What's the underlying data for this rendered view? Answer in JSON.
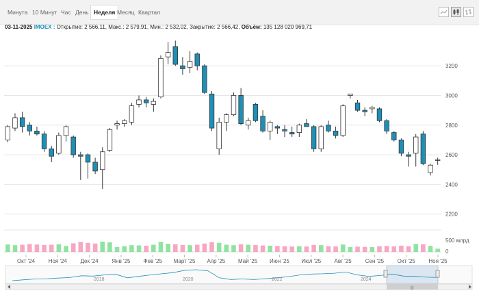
{
  "tabs": [
    {
      "label": "Минута",
      "active": false
    },
    {
      "label": "10 Минут",
      "active": false
    },
    {
      "label": "Час",
      "active": false
    },
    {
      "label": "День",
      "active": false
    },
    {
      "label": "Неделя",
      "active": true
    },
    {
      "label": "Месяц",
      "active": false
    },
    {
      "label": "Квартал",
      "active": false
    }
  ],
  "toolbar": {
    "icons": [
      "line-chart-icon",
      "candlestick-chart-icon",
      "ohlc-bar-chart-icon"
    ]
  },
  "info": {
    "date": "03-11-2025",
    "ticker": "IMOEX :",
    "ohlc_text": "Открытие: 2 566,11, Макс.: 2 579,91, Мин.: 2 532,02, Закрытие: 2 566,42,",
    "volume_label": "Объём:",
    "volume_value": "135 128 020 969,71"
  },
  "colors": {
    "up": "#ffffff",
    "down": "#1e8fb6",
    "up_volume": "#8fe3a1",
    "down_volume": "#f7a7c1",
    "navigator": "#1e8fb6"
  },
  "chart_data": {
    "type": "candlestick",
    "price_axis": {
      "ticks": [
        2200,
        2400,
        2600,
        2800,
        3000,
        3200
      ],
      "ylim": [
        2120,
        3390
      ],
      "side": "right"
    },
    "volume_axis": {
      "tick_labels": [
        "0",
        "500 млрд"
      ],
      "max": 1000
    },
    "x_labels": [
      "Окт '24",
      "Ноя '24",
      "Дек '24",
      "Янв '25",
      "Фев '25",
      "Март '25",
      "Апр '25",
      "Май '25",
      "Июн '25",
      "Июл '25",
      "Авг '25",
      "Сен '25",
      "Окт '25",
      "Ноя '25"
    ],
    "candles": [
      {
        "o": 2700,
        "h": 2800,
        "l": 2685,
        "c": 2790,
        "v": 310
      },
      {
        "o": 2780,
        "h": 2880,
        "l": 2760,
        "c": 2850,
        "v": 280
      },
      {
        "o": 2850,
        "h": 2890,
        "l": 2750,
        "c": 2790,
        "v": 300
      },
      {
        "o": 2800,
        "h": 2820,
        "l": 2730,
        "c": 2760,
        "v": 330
      },
      {
        "o": 2760,
        "h": 2790,
        "l": 2730,
        "c": 2740,
        "v": 310
      },
      {
        "o": 2740,
        "h": 2760,
        "l": 2620,
        "c": 2640,
        "v": 290
      },
      {
        "o": 2640,
        "h": 2660,
        "l": 2550,
        "c": 2590,
        "v": 300
      },
      {
        "o": 2610,
        "h": 2750,
        "l": 2600,
        "c": 2730,
        "v": 320
      },
      {
        "o": 2730,
        "h": 2800,
        "l": 2690,
        "c": 2790,
        "v": 250
      },
      {
        "o": 2720,
        "h": 2730,
        "l": 2580,
        "c": 2600,
        "v": 360
      },
      {
        "o": 2600,
        "h": 2620,
        "l": 2430,
        "c": 2590,
        "v": 420
      },
      {
        "o": 2600,
        "h": 2610,
        "l": 2440,
        "c": 2550,
        "v": 380
      },
      {
        "o": 2550,
        "h": 2580,
        "l": 2470,
        "c": 2490,
        "v": 350
      },
      {
        "o": 2500,
        "h": 2650,
        "l": 2370,
        "c": 2620,
        "v": 430
      },
      {
        "o": 2630,
        "h": 2780,
        "l": 2620,
        "c": 2770,
        "v": 400
      },
      {
        "o": 2800,
        "h": 2830,
        "l": 2770,
        "c": 2810,
        "v": 200
      },
      {
        "o": 2810,
        "h": 2840,
        "l": 2790,
        "c": 2830,
        "v": 240
      },
      {
        "o": 2820,
        "h": 2950,
        "l": 2800,
        "c": 2930,
        "v": 280
      },
      {
        "o": 2940,
        "h": 3000,
        "l": 2920,
        "c": 2970,
        "v": 270
      },
      {
        "o": 2970,
        "h": 2990,
        "l": 2920,
        "c": 2950,
        "v": 260
      },
      {
        "o": 2940,
        "h": 2980,
        "l": 2890,
        "c": 2960,
        "v": 300
      },
      {
        "o": 2990,
        "h": 3270,
        "l": 2980,
        "c": 3250,
        "v": 420
      },
      {
        "o": 3260,
        "h": 3360,
        "l": 3210,
        "c": 3290,
        "v": 340
      },
      {
        "o": 3330,
        "h": 3370,
        "l": 3200,
        "c": 3210,
        "v": 320
      },
      {
        "o": 3200,
        "h": 3260,
        "l": 3140,
        "c": 3180,
        "v": 290
      },
      {
        "o": 3190,
        "h": 3300,
        "l": 3150,
        "c": 3230,
        "v": 280
      },
      {
        "o": 3280,
        "h": 3290,
        "l": 3170,
        "c": 3200,
        "v": 300
      },
      {
        "o": 3200,
        "h": 3210,
        "l": 3010,
        "c": 3020,
        "v": 350
      },
      {
        "o": 3010,
        "h": 3030,
        "l": 2760,
        "c": 2780,
        "v": 410
      },
      {
        "o": 2640,
        "h": 2850,
        "l": 2600,
        "c": 2820,
        "v": 380
      },
      {
        "o": 2820,
        "h": 2880,
        "l": 2760,
        "c": 2870,
        "v": 300
      },
      {
        "o": 2870,
        "h": 3020,
        "l": 2860,
        "c": 3000,
        "v": 280
      },
      {
        "o": 3000,
        "h": 3050,
        "l": 2800,
        "c": 2810,
        "v": 320
      },
      {
        "o": 2800,
        "h": 2850,
        "l": 2770,
        "c": 2830,
        "v": 300
      },
      {
        "o": 2940,
        "h": 2950,
        "l": 2820,
        "c": 2830,
        "v": 290
      },
      {
        "o": 2860,
        "h": 2900,
        "l": 2750,
        "c": 2760,
        "v": 270
      },
      {
        "o": 2760,
        "h": 2830,
        "l": 2700,
        "c": 2820,
        "v": 260
      },
      {
        "o": 2790,
        "h": 2800,
        "l": 2740,
        "c": 2780,
        "v": 250
      },
      {
        "o": 2770,
        "h": 2800,
        "l": 2720,
        "c": 2760,
        "v": 240
      },
      {
        "o": 2750,
        "h": 2790,
        "l": 2720,
        "c": 2740,
        "v": 230
      },
      {
        "o": 2750,
        "h": 2810,
        "l": 2720,
        "c": 2800,
        "v": 240
      },
      {
        "o": 2810,
        "h": 2840,
        "l": 2800,
        "c": 2790,
        "v": 230
      },
      {
        "o": 2790,
        "h": 2800,
        "l": 2620,
        "c": 2640,
        "v": 290
      },
      {
        "o": 2640,
        "h": 2800,
        "l": 2620,
        "c": 2790,
        "v": 280
      },
      {
        "o": 2800,
        "h": 2830,
        "l": 2750,
        "c": 2760,
        "v": 240
      },
      {
        "o": 2760,
        "h": 2790,
        "l": 2710,
        "c": 2730,
        "v": 230
      },
      {
        "o": 2730,
        "h": 2940,
        "l": 2720,
        "c": 2930,
        "v": 310
      },
      {
        "o": 3000,
        "h": 3010,
        "l": 2980,
        "c": 3010,
        "v": 200
      },
      {
        "o": 2950,
        "h": 2970,
        "l": 2890,
        "c": 2900,
        "v": 220
      },
      {
        "o": 2900,
        "h": 2920,
        "l": 2860,
        "c": 2890,
        "v": 210
      },
      {
        "o": 2910,
        "h": 2930,
        "l": 2880,
        "c": 2920,
        "v": 200
      },
      {
        "o": 2910,
        "h": 2920,
        "l": 2820,
        "c": 2830,
        "v": 240
      },
      {
        "o": 2830,
        "h": 2840,
        "l": 2740,
        "c": 2760,
        "v": 250
      },
      {
        "o": 2750,
        "h": 2760,
        "l": 2690,
        "c": 2700,
        "v": 230
      },
      {
        "o": 2700,
        "h": 2710,
        "l": 2590,
        "c": 2610,
        "v": 260
      },
      {
        "o": 2600,
        "h": 2620,
        "l": 2520,
        "c": 2590,
        "v": 240
      },
      {
        "o": 2610,
        "h": 2740,
        "l": 2520,
        "c": 2720,
        "v": 330
      },
      {
        "o": 2740,
        "h": 2760,
        "l": 2530,
        "c": 2540,
        "v": 320
      },
      {
        "o": 2480,
        "h": 2540,
        "l": 2460,
        "c": 2530,
        "v": 250
      },
      {
        "o": 2566,
        "h": 2580,
        "l": 2532,
        "c": 2566,
        "v": 135
      }
    ]
  },
  "navigator": {
    "year_labels": [
      "2018",
      "2020",
      "2022",
      "2024"
    ],
    "series": [
      2000,
      2150,
      2300,
      2350,
      2450,
      2550,
      2850,
      2800,
      3000,
      3100,
      2500,
      2750,
      3000,
      3200,
      3400,
      3800,
      3900,
      3700,
      2500,
      2200,
      2300,
      2200,
      2350,
      2500,
      2700,
      3000,
      3150,
      3200,
      3300,
      3500,
      3000,
      2750,
      2900,
      3150,
      2800,
      2750,
      2600,
      2550
    ],
    "scroll_label": "|||"
  }
}
